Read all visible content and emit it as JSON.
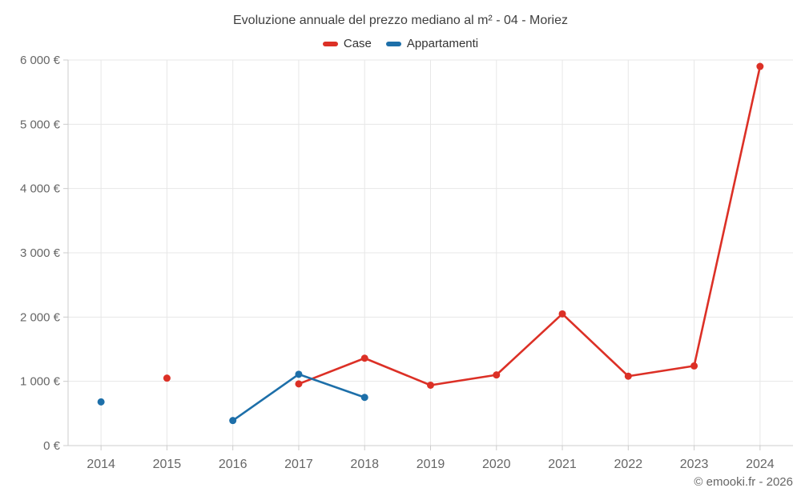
{
  "chart": {
    "title": "Evoluzione annuale del prezzo mediano al m² - 04 - Moriez"
  },
  "legend": {
    "items": [
      {
        "label": "Case",
        "color": "#dc3026"
      },
      {
        "label": "Appartamenti",
        "color": "#1d6fa9"
      }
    ]
  },
  "footer": {
    "text": "© emooki.fr - 2026"
  },
  "chart_data": {
    "type": "line",
    "title": "Evoluzione annuale del prezzo mediano al m² - 04 - Moriez",
    "categories": [
      "2014",
      "2015",
      "2016",
      "2017",
      "2018",
      "2019",
      "2020",
      "2021",
      "2022",
      "2023",
      "2024"
    ],
    "series": [
      {
        "name": "Case",
        "color": "#dc3026",
        "values": [
          null,
          1050,
          null,
          960,
          1360,
          940,
          1100,
          2050,
          1080,
          1240,
          5900
        ]
      },
      {
        "name": "Appartamenti",
        "color": "#1d6fa9",
        "values": [
          680,
          null,
          390,
          1110,
          750,
          null,
          null,
          null,
          null,
          null,
          null
        ]
      }
    ],
    "xlabel": "",
    "ylabel": "",
    "ylim": [
      0,
      6000
    ],
    "y_tick_step": 1000,
    "y_tick_labels": [
      "0 €",
      "1 000 €",
      "2 000 €",
      "3 000 €",
      "4 000 €",
      "5 000 €",
      "6 000 €"
    ],
    "grid": true,
    "legend_position": "top",
    "connect_nulls": false
  }
}
